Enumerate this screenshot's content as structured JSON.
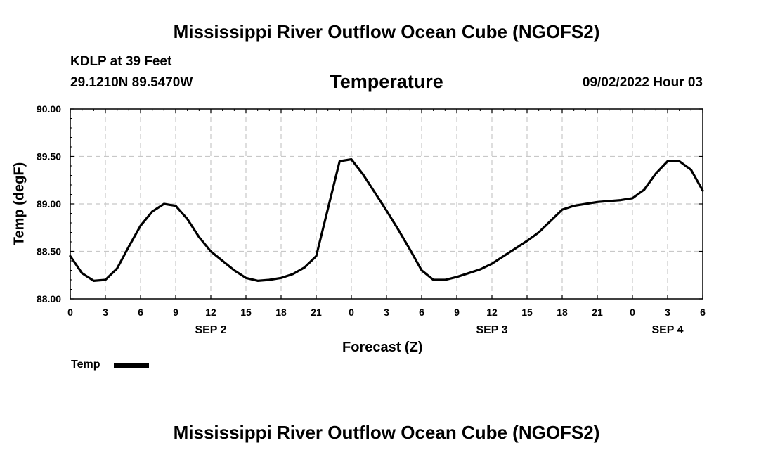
{
  "page": {
    "title_top": "Mississippi River Outflow Ocean Cube (NGOFS2)",
    "title_bottom": "Mississippi River Outflow Ocean Cube (NGOFS2)",
    "station": "KDLP at 39 Feet",
    "coordinates": "29.1210N  89.5470W",
    "variable": "Temperature",
    "datetime": "09/02/2022 Hour 03"
  },
  "chart_data": {
    "type": "line",
    "title": "Temperature",
    "xlabel": "Forecast (Z)",
    "ylabel": "Temp (degF)",
    "xlim": [
      0,
      54
    ],
    "ylim": [
      88.0,
      90.0
    ],
    "grid": true,
    "legend": {
      "position": "bottom-left",
      "entries": [
        "Temp"
      ]
    },
    "x_ticks": [
      {
        "x": 0,
        "label": "0"
      },
      {
        "x": 3,
        "label": "3"
      },
      {
        "x": 6,
        "label": "6"
      },
      {
        "x": 9,
        "label": "9"
      },
      {
        "x": 12,
        "label": "12"
      },
      {
        "x": 15,
        "label": "15"
      },
      {
        "x": 18,
        "label": "18"
      },
      {
        "x": 21,
        "label": "21"
      },
      {
        "x": 24,
        "label": "0"
      },
      {
        "x": 27,
        "label": "3"
      },
      {
        "x": 30,
        "label": "6"
      },
      {
        "x": 33,
        "label": "9"
      },
      {
        "x": 36,
        "label": "12"
      },
      {
        "x": 39,
        "label": "15"
      },
      {
        "x": 42,
        "label": "18"
      },
      {
        "x": 45,
        "label": "21"
      },
      {
        "x": 48,
        "label": "0"
      },
      {
        "x": 51,
        "label": "3"
      },
      {
        "x": 54,
        "label": "6"
      }
    ],
    "day_labels": [
      {
        "x": 12,
        "label": "SEP 2"
      },
      {
        "x": 36,
        "label": "SEP 3"
      },
      {
        "x": 51,
        "label": "SEP 4"
      }
    ],
    "y_ticks": [
      {
        "y": 88.0,
        "label": "88.00"
      },
      {
        "y": 88.5,
        "label": "88.50"
      },
      {
        "y": 89.0,
        "label": "89.00"
      },
      {
        "y": 89.5,
        "label": "89.50"
      },
      {
        "y": 90.0,
        "label": "90.00"
      }
    ],
    "series": [
      {
        "name": "Temp",
        "color": "#000000",
        "x": [
          0,
          1,
          2,
          3,
          4,
          5,
          6,
          7,
          8,
          9,
          10,
          11,
          12,
          13,
          14,
          15,
          16,
          17,
          18,
          19,
          20,
          21,
          22,
          23,
          24,
          25,
          26,
          27,
          28,
          29,
          30,
          31,
          32,
          33,
          34,
          35,
          36,
          37,
          38,
          39,
          40,
          41,
          42,
          43,
          44,
          45,
          46,
          47,
          48,
          49,
          50,
          51,
          52,
          53,
          54
        ],
        "y": [
          88.45,
          88.27,
          88.19,
          88.2,
          88.32,
          88.55,
          88.77,
          88.92,
          89.0,
          88.98,
          88.84,
          88.65,
          88.5,
          88.4,
          88.3,
          88.22,
          88.19,
          88.2,
          88.22,
          88.26,
          88.33,
          88.45,
          88.95,
          89.45,
          89.47,
          89.31,
          89.12,
          88.93,
          88.73,
          88.52,
          88.3,
          88.2,
          88.2,
          88.23,
          88.27,
          88.31,
          88.37,
          88.45,
          88.53,
          88.61,
          88.7,
          88.82,
          88.94,
          88.98,
          89.0,
          89.02,
          89.03,
          89.04,
          89.06,
          89.15,
          89.32,
          89.45,
          89.45,
          89.36,
          89.14
        ]
      }
    ]
  }
}
